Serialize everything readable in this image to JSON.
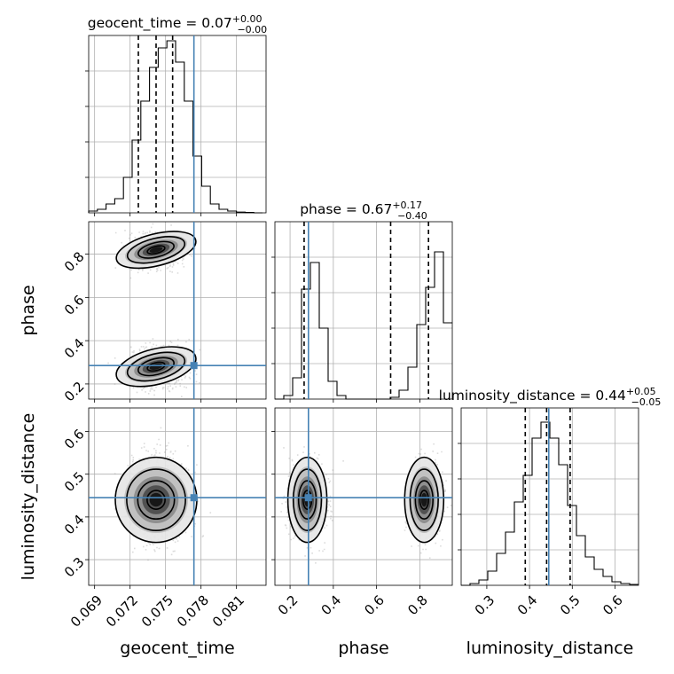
{
  "chart_data": {
    "type": "corner",
    "parameters": [
      {
        "name": "geocent_time",
        "range": [
          0.0685,
          0.0835
        ],
        "ticks": [
          0.069,
          0.072,
          0.075,
          0.078,
          0.081
        ],
        "tick_labels": [
          "0.069",
          "0.072",
          "0.075",
          "0.078",
          "0.081"
        ]
      },
      {
        "name": "phase",
        "range": [
          0.13,
          0.95
        ],
        "ticks": [
          0.2,
          0.4,
          0.6,
          0.8
        ],
        "tick_labels": [
          "0.2",
          "0.4",
          "0.6",
          "0.8"
        ]
      },
      {
        "name": "luminosity_distance",
        "range": [
          0.24,
          0.655
        ],
        "ticks": [
          0.3,
          0.4,
          0.5,
          0.6
        ],
        "tick_labels": [
          "0.3",
          "0.4",
          "0.5",
          "0.6"
        ]
      }
    ],
    "truths": [
      0.0774,
      0.285,
      0.445
    ],
    "titles": [
      {
        "text": "geocent_time = 0.07",
        "sup": "+0.00",
        "sub": "−0.00"
      },
      {
        "text": "phase = 0.67",
        "sup": "+0.17",
        "sub": "−0.40"
      },
      {
        "text": "luminosity_distance = 0.44",
        "sup": "+0.05",
        "sub": "−0.05"
      }
    ],
    "quantiles": [
      [
        0.0727,
        0.0742,
        0.0756
      ],
      [
        0.265,
        0.665,
        0.84
      ],
      [
        0.39,
        0.44,
        0.495
      ]
    ],
    "histograms": [
      {
        "bins": [
          0.0685,
          0.0832
        ],
        "counts": [
          0.01,
          0.02,
          0.05,
          0.08,
          0.2,
          0.41,
          0.63,
          0.82,
          0.93,
          0.97,
          0.85,
          0.63,
          0.32,
          0.15,
          0.05,
          0.02,
          0.01,
          0.004,
          0.002,
          0
        ]
      },
      {
        "bins": [
          0.13,
          0.95
        ],
        "counts": [
          0,
          0.02,
          0.12,
          0.62,
          0.77,
          0.4,
          0.1,
          0.02,
          0,
          0,
          0,
          0,
          0,
          0.01,
          0.05,
          0.18,
          0.42,
          0.63,
          0.83,
          0.43
        ]
      },
      {
        "bins": [
          0.24,
          0.655
        ],
        "counts": [
          0,
          0.01,
          0.03,
          0.08,
          0.18,
          0.3,
          0.47,
          0.62,
          0.83,
          0.92,
          0.83,
          0.68,
          0.45,
          0.28,
          0.16,
          0.09,
          0.05,
          0.02,
          0.01,
          0.005
        ]
      }
    ],
    "modes": {
      "geocent_time": 0.0742,
      "phase": [
        {
          "center": 0.28,
          "sd": 0.045,
          "weight": 0.6
        },
        {
          "center": 0.82,
          "sd": 0.04,
          "weight": 0.4
        }
      ],
      "luminosity_distance": 0.44
    }
  }
}
